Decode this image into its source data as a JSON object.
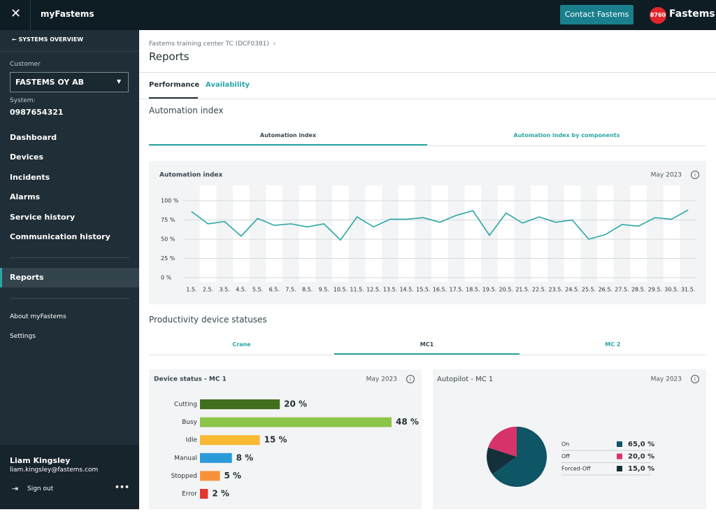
{
  "topbar": {
    "app": "myFastems",
    "contact": "Contact Fastems",
    "logo_badge": "8760",
    "logo": "Fastems"
  },
  "sidebar": {
    "back": "SYSTEMS OVERVIEW",
    "customer_label": "Customer",
    "customer": "FASTEMS OY AB",
    "system_label": "System:",
    "system": "0987654321",
    "nav": [
      "Dashboard",
      "Devices",
      "Incidents",
      "Alarms",
      "Service history",
      "Communication history"
    ],
    "active": "Reports",
    "secondary": [
      "About myFastems",
      "Settings"
    ],
    "user": {
      "name": "Liam Kingsley",
      "email": "liam.kingsley@fastems.com",
      "sign_out": "Sign out"
    }
  },
  "header": {
    "breadcrumb": "Fastems training center TC (DCF0381)",
    "title": "Reports"
  },
  "tabs": [
    "Performance",
    "Availability"
  ],
  "sections": {
    "automation": {
      "title": "Automation index",
      "subtabs": [
        "Automation index",
        "Automation index by components"
      ]
    },
    "productivity": {
      "title": "Productivity device statuses",
      "subtabs": [
        "Crane",
        "MC1",
        "MC 2"
      ]
    }
  },
  "chart_data": [
    {
      "type": "line",
      "title": "Automation index",
      "period": "May 2023",
      "categories": [
        "1.5.",
        "2.5.",
        "3.5.",
        "4.5.",
        "5.5.",
        "6.5.",
        "7.5.",
        "8.5.",
        "9.5.",
        "10.5.",
        "11.5.",
        "12.5.",
        "13.5.",
        "14.5.",
        "15.5.",
        "16.5.",
        "17.5.",
        "18.5.",
        "19.5.",
        "20.5.",
        "21.5.",
        "22.5.",
        "23.5.",
        "24.5.",
        "25.5.",
        "26.5.",
        "27.5.",
        "28.5.",
        "29.5.",
        "30.5.",
        "31.5."
      ],
      "series": [
        {
          "name": "Automation index",
          "color": "#2aa6a6",
          "values": [
            86,
            70,
            73,
            54,
            77,
            68,
            70,
            66,
            70,
            49,
            79,
            66,
            76,
            76,
            78,
            72,
            81,
            87,
            55,
            84,
            71,
            79,
            72,
            75,
            50,
            56,
            69,
            67,
            78,
            76,
            88
          ]
        }
      ],
      "ylim": [
        0,
        100
      ],
      "yticks": [
        {
          "value": 0,
          "label": "0 %"
        },
        {
          "value": 25,
          "label": "25 %"
        },
        {
          "value": 50,
          "label": "50 %"
        },
        {
          "value": 75,
          "label": "75 %"
        },
        {
          "value": 100,
          "label": "100 %"
        }
      ],
      "grid": true
    },
    {
      "type": "hbar",
      "title": "Device status - MC 1",
      "period": "May 2023",
      "categories": [
        "Cutting",
        "Busy",
        "Idle",
        "Manual",
        "Stopped",
        "Error"
      ],
      "values": [
        20,
        48,
        15,
        8,
        5,
        2
      ],
      "value_labels": [
        "20 %",
        "48 %",
        "15 %",
        "8 %",
        "5 %",
        "2 %"
      ],
      "colors": [
        "#3f6e1c",
        "#8dc44a",
        "#f8b933",
        "#2a9ad9",
        "#f7923b",
        "#e1372e"
      ]
    },
    {
      "type": "pie",
      "title": "Autopilot - MC 1",
      "period": "May 2023",
      "categories": [
        "On",
        "Off",
        "Forced-Off"
      ],
      "values": [
        65,
        20,
        15
      ],
      "value_labels": [
        "65,0 %",
        "20,0 %",
        "15,0 %"
      ],
      "colors": [
        "#0e5566",
        "#d6336b",
        "#13303b"
      ],
      "order": [
        0,
        2,
        1
      ]
    }
  ]
}
